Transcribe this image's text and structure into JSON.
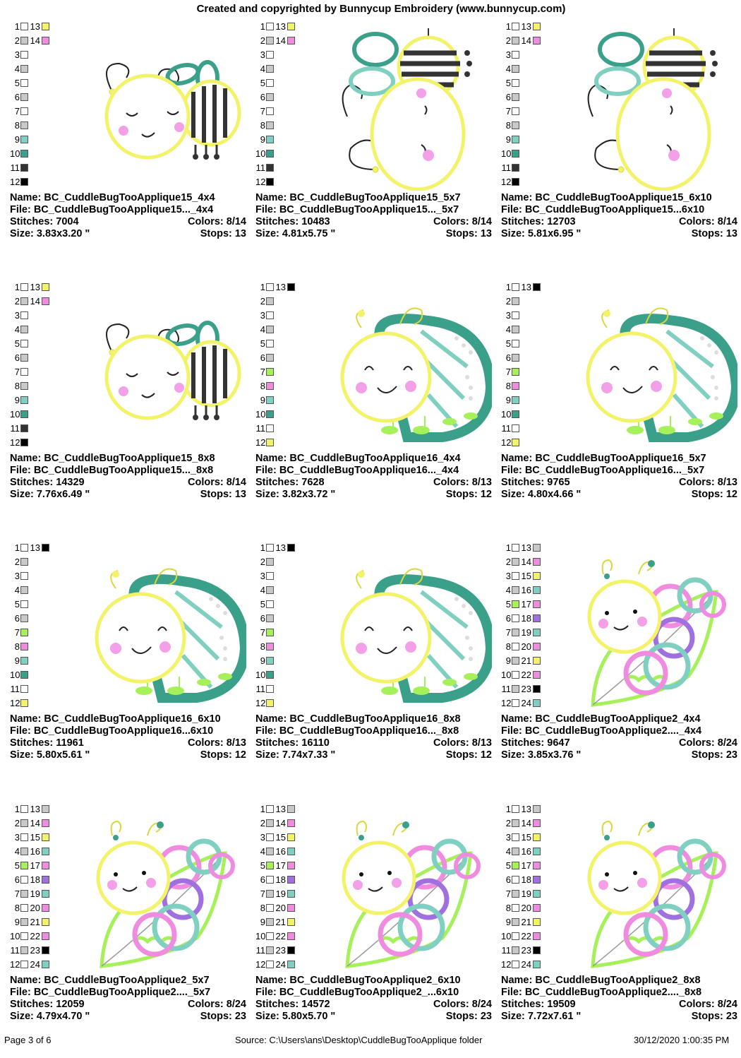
{
  "header": "Created and copyrighted by Bunnycup Embroidery (www.bunnycup.com)",
  "labels": {
    "name": "Name:",
    "file": "File:",
    "stitches": "Stitches:",
    "size": "Size:",
    "colors": "Colors:",
    "stops": "Stops:"
  },
  "designs": [
    {
      "name": "BC_CuddleBugTooApplique15_4x4",
      "file": "BC_CuddleBugTooApplique15..._4x4",
      "stitches": "7004",
      "colors": "8/14",
      "size": "3.83x3.20 \"",
      "stops": "13",
      "art": "bee-small",
      "swatches": [
        "#ffffff",
        "#c8c8c8",
        "#ffffff",
        "#c8c8c8",
        "#ffffff",
        "#c8c8c8",
        "#ffffff",
        "#c8c8c8",
        "#7fd0c0",
        "#3aa08a",
        "#333333",
        "#000000",
        "#f3f36a",
        "#f08ce0"
      ]
    },
    {
      "name": "BC_CuddleBugTooApplique15_5x7",
      "file": "BC_CuddleBugTooApplique15..._5x7",
      "stitches": "10483",
      "colors": "8/14",
      "size": "4.81x5.75 \"",
      "stops": "13",
      "art": "bee-tall",
      "swatches": [
        "#ffffff",
        "#c8c8c8",
        "#ffffff",
        "#c8c8c8",
        "#ffffff",
        "#c8c8c8",
        "#ffffff",
        "#c8c8c8",
        "#7fd0c0",
        "#3aa08a",
        "#333333",
        "#000000",
        "#f3f36a",
        "#f08ce0"
      ]
    },
    {
      "name": "BC_CuddleBugTooApplique15_6x10",
      "file": "BC_CuddleBugTooApplique15...6x10",
      "stitches": "12703",
      "colors": "8/14",
      "size": "5.81x6.95 \"",
      "stops": "13",
      "art": "bee-tall",
      "swatches": [
        "#ffffff",
        "#c8c8c8",
        "#ffffff",
        "#c8c8c8",
        "#ffffff",
        "#c8c8c8",
        "#ffffff",
        "#c8c8c8",
        "#7fd0c0",
        "#3aa08a",
        "#333333",
        "#000000",
        "#f3f36a",
        "#f08ce0"
      ]
    },
    {
      "name": "BC_CuddleBugTooApplique15_8x8",
      "file": "BC_CuddleBugTooApplique15..._8x8",
      "stitches": "14329",
      "colors": "8/14",
      "size": "7.76x6.49 \"",
      "stops": "13",
      "art": "bee-small",
      "swatches": [
        "#ffffff",
        "#c8c8c8",
        "#ffffff",
        "#c8c8c8",
        "#ffffff",
        "#c8c8c8",
        "#ffffff",
        "#c8c8c8",
        "#7fd0c0",
        "#3aa08a",
        "#333333",
        "#000000",
        "#f3f36a",
        "#f08ce0"
      ]
    },
    {
      "name": "BC_CuddleBugTooApplique16_4x4",
      "file": "BC_CuddleBugTooApplique16..._4x4",
      "stitches": "7628",
      "colors": "8/13",
      "size": "3.82x3.72 \"",
      "stops": "12",
      "art": "ladybug",
      "swatches": [
        "#ffffff",
        "#c8c8c8",
        "#ffffff",
        "#c8c8c8",
        "#ffffff",
        "#c8c8c8",
        "#a6f05a",
        "#f08ce0",
        "#7fd0c0",
        "#3aa08a",
        "#ffffff",
        "#f3f36a",
        "#000000"
      ]
    },
    {
      "name": "BC_CuddleBugTooApplique16_5x7",
      "file": "BC_CuddleBugTooApplique16..._5x7",
      "stitches": "9765",
      "colors": "8/13",
      "size": "4.80x4.66 \"",
      "stops": "12",
      "art": "ladybug",
      "swatches": [
        "#ffffff",
        "#c8c8c8",
        "#ffffff",
        "#c8c8c8",
        "#ffffff",
        "#c8c8c8",
        "#a6f05a",
        "#f08ce0",
        "#7fd0c0",
        "#3aa08a",
        "#ffffff",
        "#f3f36a",
        "#000000"
      ]
    },
    {
      "name": "BC_CuddleBugTooApplique16_6x10",
      "file": "BC_CuddleBugTooApplique16...6x10",
      "stitches": "11961",
      "colors": "8/13",
      "size": "5.80x5.61 \"",
      "stops": "12",
      "art": "ladybug",
      "swatches": [
        "#ffffff",
        "#c8c8c8",
        "#ffffff",
        "#c8c8c8",
        "#ffffff",
        "#c8c8c8",
        "#a6f05a",
        "#f08ce0",
        "#7fd0c0",
        "#3aa08a",
        "#ffffff",
        "#f3f36a",
        "#000000"
      ]
    },
    {
      "name": "BC_CuddleBugTooApplique16_8x8",
      "file": "BC_CuddleBugTooApplique16..._8x8",
      "stitches": "16110",
      "colors": "8/13",
      "size": "7.74x7.33 \"",
      "stops": "12",
      "art": "ladybug",
      "swatches": [
        "#ffffff",
        "#c8c8c8",
        "#ffffff",
        "#c8c8c8",
        "#ffffff",
        "#c8c8c8",
        "#a6f05a",
        "#f08ce0",
        "#7fd0c0",
        "#3aa08a",
        "#ffffff",
        "#f3f36a",
        "#000000"
      ]
    },
    {
      "name": "BC_CuddleBugTooApplique2_4x4",
      "file": "BC_CuddleBugTooApplique2...._4x4",
      "stitches": "9647",
      "colors": "8/24",
      "size": "3.85x3.76 \"",
      "stops": "23",
      "art": "caterpillar",
      "swatches": [
        "#ffffff",
        "#c8c8c8",
        "#ffffff",
        "#c8c8c8",
        "#a6f05a",
        "#ffffff",
        "#c8c8c8",
        "#ffffff",
        "#c8c8c8",
        "#ffffff",
        "#c8c8c8",
        "#ffffff",
        "#c8c8c8",
        "#f08ce0",
        "#f3f36a",
        "#7fd0c0",
        "#f08ce0",
        "#a070e0",
        "#7fd0c0",
        "#f08ce0",
        "#f3f36a",
        "#f08ce0",
        "#000000",
        "#7fd0c0"
      ]
    },
    {
      "name": "BC_CuddleBugTooApplique2_5x7",
      "file": "BC_CuddleBugTooApplique2...._5x7",
      "stitches": "12059",
      "colors": "8/24",
      "size": "4.79x4.70 \"",
      "stops": "23",
      "art": "caterpillar",
      "swatches": [
        "#ffffff",
        "#c8c8c8",
        "#ffffff",
        "#c8c8c8",
        "#a6f05a",
        "#ffffff",
        "#c8c8c8",
        "#ffffff",
        "#c8c8c8",
        "#ffffff",
        "#c8c8c8",
        "#ffffff",
        "#c8c8c8",
        "#f08ce0",
        "#f3f36a",
        "#7fd0c0",
        "#f08ce0",
        "#a070e0",
        "#7fd0c0",
        "#f08ce0",
        "#f3f36a",
        "#f08ce0",
        "#000000",
        "#7fd0c0"
      ]
    },
    {
      "name": "BC_CuddleBugTooApplique2_6x10",
      "file": "BC_CuddleBugTooApplique2_...6x10",
      "stitches": "14572",
      "colors": "8/24",
      "size": "5.80x5.70 \"",
      "stops": "23",
      "art": "caterpillar",
      "swatches": [
        "#ffffff",
        "#c8c8c8",
        "#ffffff",
        "#c8c8c8",
        "#a6f05a",
        "#ffffff",
        "#c8c8c8",
        "#ffffff",
        "#c8c8c8",
        "#ffffff",
        "#c8c8c8",
        "#ffffff",
        "#c8c8c8",
        "#f08ce0",
        "#f3f36a",
        "#7fd0c0",
        "#f08ce0",
        "#a070e0",
        "#7fd0c0",
        "#f08ce0",
        "#f3f36a",
        "#f08ce0",
        "#000000",
        "#7fd0c0"
      ]
    },
    {
      "name": "BC_CuddleBugTooApplique2_8x8",
      "file": "BC_CuddleBugTooApplique2...._8x8",
      "stitches": "19509",
      "colors": "8/24",
      "size": "7.72x7.61 \"",
      "stops": "23",
      "art": "caterpillar",
      "swatches": [
        "#ffffff",
        "#c8c8c8",
        "#ffffff",
        "#c8c8c8",
        "#a6f05a",
        "#ffffff",
        "#c8c8c8",
        "#ffffff",
        "#c8c8c8",
        "#ffffff",
        "#c8c8c8",
        "#ffffff",
        "#c8c8c8",
        "#f08ce0",
        "#f3f36a",
        "#7fd0c0",
        "#f08ce0",
        "#a070e0",
        "#7fd0c0",
        "#f08ce0",
        "#f3f36a",
        "#f08ce0",
        "#000000",
        "#7fd0c0"
      ]
    }
  ],
  "footer": {
    "page": "Page 3 of 6",
    "source": "Source: C:\\Users\\ans\\Desktop\\CuddleBugTooApplique folder",
    "timestamp": "30/12/2020 1:00:35 PM"
  }
}
